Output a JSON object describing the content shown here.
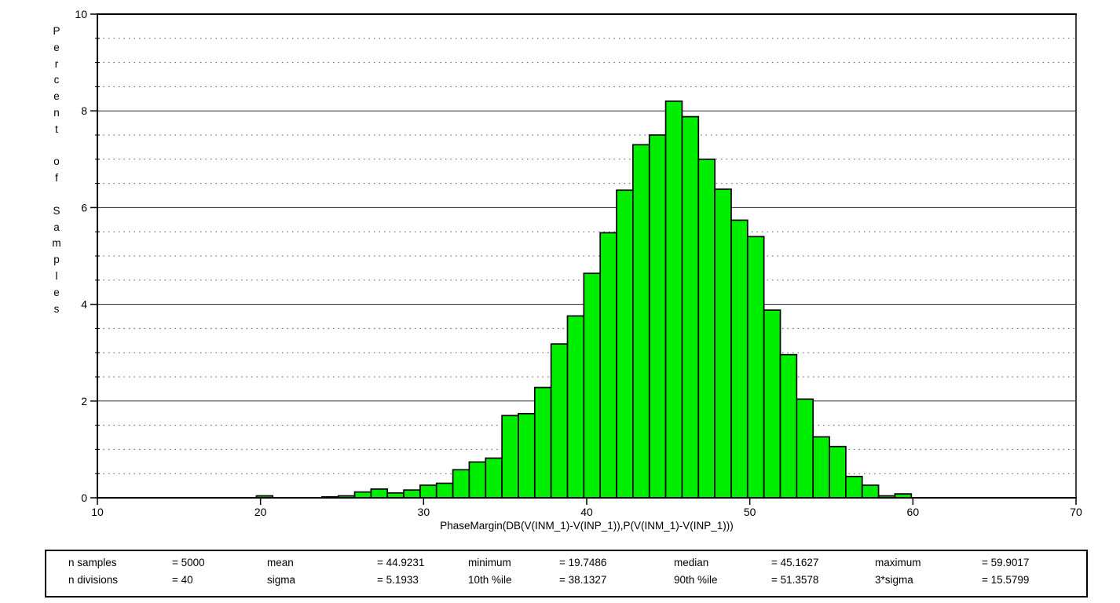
{
  "chart_data": {
    "type": "bar",
    "subtype": "histogram",
    "title": "",
    "xlabel": "PhaseMargin(DB(V(INM_1)-V(INP_1)),P(V(INM_1)-V(INP_1)))",
    "ylabel": "Percent of Samples",
    "xlim": [
      10,
      70
    ],
    "ylim": [
      0,
      10
    ],
    "x_ticks": [
      10,
      20,
      30,
      40,
      50,
      60,
      70
    ],
    "y_ticks": [
      0,
      2,
      4,
      6,
      8,
      10
    ],
    "y_minor_step": 0.5,
    "grid": "horizontal only: solid major lines, dotted minor lines",
    "legend": "none",
    "bar_color": "#00ef00",
    "bar_edge_color": "#000000",
    "bin_start": 19.7486,
    "bin_width": 1.0038,
    "n_bins": 40,
    "values_percent": [
      0.04,
      0,
      0,
      0,
      0.02,
      0.04,
      0.12,
      0.18,
      0.1,
      0.16,
      0.26,
      0.3,
      0.58,
      0.74,
      0.82,
      1.7,
      1.74,
      2.28,
      3.18,
      3.76,
      4.64,
      5.48,
      6.36,
      7.3,
      7.5,
      8.2,
      7.88,
      7.0,
      6.38,
      5.74,
      5.4,
      3.88,
      2.96,
      2.04,
      1.26,
      1.06,
      0.44,
      0.26,
      0.04,
      0.08
    ]
  },
  "stats": {
    "rows": [
      [
        {
          "label": "n samples",
          "value": "= 5000"
        },
        {
          "label": "mean",
          "value": "= 44.9231"
        },
        {
          "label": "minimum",
          "value": "= 19.7486"
        },
        {
          "label": "median",
          "value": "= 45.1627"
        },
        {
          "label": "maximum",
          "value": "= 59.9017"
        }
      ],
      [
        {
          "label": "n divisions",
          "value": "= 40"
        },
        {
          "label": "sigma",
          "value": "= 5.1933"
        },
        {
          "label": "10th %ile",
          "value": "= 38.1327"
        },
        {
          "label": "90th %ile",
          "value": "= 51.3578"
        },
        {
          "label": "3*sigma",
          "value": "= 15.5799"
        }
      ]
    ]
  }
}
